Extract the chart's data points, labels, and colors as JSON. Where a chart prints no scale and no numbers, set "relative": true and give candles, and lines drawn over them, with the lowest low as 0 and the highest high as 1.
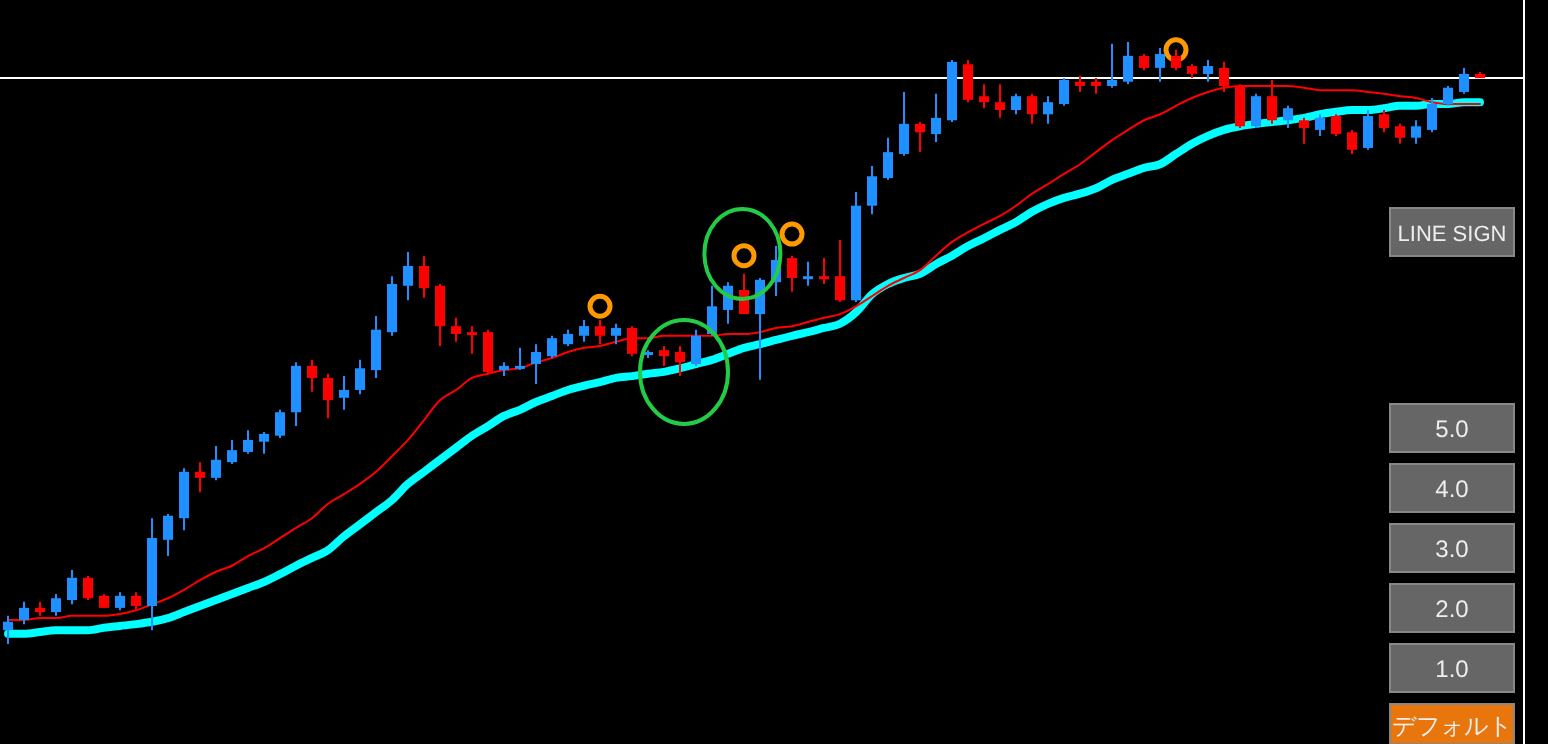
{
  "chart_data": {
    "type": "candlestick",
    "relative": true,
    "categories": [
      null,
      null,
      null,
      null,
      null,
      null,
      null,
      null,
      null,
      null,
      null,
      null,
      null,
      null,
      null,
      null,
      null,
      null,
      null,
      null,
      null,
      null,
      null,
      null,
      null,
      null,
      null,
      null,
      null,
      null,
      null,
      null,
      null,
      null,
      null,
      null,
      null,
      null,
      null,
      null,
      null,
      null,
      null,
      null,
      null,
      null,
      null,
      null,
      null,
      null,
      null,
      null,
      null,
      null,
      null,
      null,
      null,
      null,
      null,
      null,
      null,
      null,
      null,
      null,
      null,
      null,
      null,
      null,
      null,
      null,
      null,
      null,
      null,
      null,
      null,
      null,
      null,
      null,
      null,
      null,
      null,
      null,
      null,
      null,
      null,
      null,
      null,
      null,
      null,
      null,
      null,
      null,
      null
    ],
    "ohlc": [
      [
        0.023,
        0.047,
        0,
        0.037
      ],
      [
        0.04,
        0.07,
        0.033,
        0.06
      ],
      [
        0.06,
        0.07,
        0.047,
        0.053
      ],
      [
        0.053,
        0.083,
        0.047,
        0.076
      ],
      [
        0.073,
        0.123,
        0.066,
        0.11
      ],
      [
        0.11,
        0.113,
        0.073,
        0.076
      ],
      [
        0.08,
        0.083,
        0.06,
        0.06
      ],
      [
        0.06,
        0.086,
        0.056,
        0.08
      ],
      [
        0.08,
        0.086,
        0.056,
        0.063
      ],
      [
        0.063,
        0.209,
        0.023,
        0.176
      ],
      [
        0.173,
        0.216,
        0.146,
        0.213
      ],
      [
        0.209,
        0.292,
        0.189,
        0.286
      ],
      [
        0.286,
        0.302,
        0.252,
        0.276
      ],
      [
        0.276,
        0.329,
        0.272,
        0.306
      ],
      [
        0.302,
        0.339,
        0.299,
        0.322
      ],
      [
        0.319,
        0.355,
        0.316,
        0.339
      ],
      [
        0.336,
        0.352,
        0.316,
        0.349
      ],
      [
        0.346,
        0.389,
        0.342,
        0.385
      ],
      [
        0.385,
        0.468,
        0.362,
        0.462
      ],
      [
        0.462,
        0.472,
        0.419,
        0.442
      ],
      [
        0.442,
        0.449,
        0.375,
        0.405
      ],
      [
        0.409,
        0.445,
        0.389,
        0.422
      ],
      [
        0.422,
        0.472,
        0.415,
        0.458
      ],
      [
        0.455,
        0.545,
        0.442,
        0.522
      ],
      [
        0.518,
        0.611,
        0.512,
        0.598
      ],
      [
        0.595,
        0.651,
        0.571,
        0.628
      ],
      [
        0.628,
        0.645,
        0.575,
        0.591
      ],
      [
        0.595,
        0.598,
        0.495,
        0.528
      ],
      [
        0.528,
        0.542,
        0.502,
        0.515
      ],
      [
        0.518,
        0.528,
        0.482,
        0.515
      ],
      [
        0.518,
        0.522,
        0.449,
        0.452
      ],
      [
        0.455,
        0.468,
        0.445,
        0.462
      ],
      [
        0.458,
        0.492,
        0.455,
        0.462
      ],
      [
        0.465,
        0.498,
        0.432,
        0.485
      ],
      [
        0.478,
        0.512,
        0.475,
        0.508
      ],
      [
        0.498,
        0.522,
        0.495,
        0.515
      ],
      [
        0.512,
        0.538,
        0.502,
        0.528
      ],
      [
        0.528,
        0.538,
        0.498,
        0.512
      ],
      [
        0.512,
        0.532,
        0.498,
        0.525
      ],
      [
        0.525,
        0.528,
        0.478,
        0.482
      ],
      [
        0.482,
        0.488,
        0.475,
        0.485
      ],
      [
        0.488,
        0.495,
        0.462,
        0.478
      ],
      [
        0.485,
        0.495,
        0.445,
        0.468
      ],
      [
        0.465,
        0.522,
        0.462,
        0.512
      ],
      [
        0.515,
        0.595,
        0.512,
        0.561
      ],
      [
        0.555,
        0.601,
        0.532,
        0.595
      ],
      [
        0.588,
        0.615,
        0.548,
        0.548
      ],
      [
        0.548,
        0.608,
        0.439,
        0.605
      ],
      [
        0.601,
        0.661,
        0.578,
        0.638
      ],
      [
        0.641,
        0.645,
        0.585,
        0.608
      ],
      [
        0.608,
        0.635,
        0.595,
        0.611
      ],
      [
        0.611,
        0.641,
        0.598,
        0.608
      ],
      [
        0.611,
        0.671,
        0.568,
        0.571
      ],
      [
        0.571,
        0.751,
        0.568,
        0.728
      ],
      [
        0.728,
        0.794,
        0.714,
        0.777
      ],
      [
        0.774,
        0.841,
        0.771,
        0.817
      ],
      [
        0.814,
        0.917,
        0.811,
        0.864
      ],
      [
        0.864,
        0.867,
        0.817,
        0.85
      ],
      [
        0.847,
        0.914,
        0.834,
        0.874
      ],
      [
        0.87,
        0.97,
        0.867,
        0.967
      ],
      [
        0.963,
        0.97,
        0.9,
        0.904
      ],
      [
        0.91,
        0.93,
        0.89,
        0.9
      ],
      [
        0.9,
        0.93,
        0.874,
        0.887
      ],
      [
        0.887,
        0.914,
        0.88,
        0.91
      ],
      [
        0.91,
        0.914,
        0.864,
        0.88
      ],
      [
        0.88,
        0.91,
        0.864,
        0.9
      ],
      [
        0.897,
        0.94,
        0.894,
        0.937
      ],
      [
        0.934,
        0.944,
        0.917,
        0.927
      ],
      [
        0.934,
        0.94,
        0.914,
        0.927
      ],
      [
        0.927,
        0.997,
        0.924,
        0.937
      ],
      [
        0.934,
        1,
        0.93,
        0.977
      ],
      [
        0.977,
        0.98,
        0.953,
        0.957
      ],
      [
        0.957,
        0.99,
        0.934,
        0.98
      ],
      [
        0.977,
        0.987,
        0.953,
        0.957
      ],
      [
        0.96,
        0.963,
        0.94,
        0.947
      ],
      [
        0.947,
        0.97,
        0.934,
        0.96
      ],
      [
        0.957,
        0.967,
        0.917,
        0.927
      ],
      [
        0.927,
        0.93,
        0.857,
        0.86
      ],
      [
        0.86,
        0.914,
        0.857,
        0.91
      ],
      [
        0.91,
        0.937,
        0.864,
        0.87
      ],
      [
        0.87,
        0.894,
        0.857,
        0.89
      ],
      [
        0.87,
        0.874,
        0.831,
        0.857
      ],
      [
        0.854,
        0.88,
        0.844,
        0.874
      ],
      [
        0.877,
        0.88,
        0.844,
        0.847
      ],
      [
        0.85,
        0.854,
        0.814,
        0.821
      ],
      [
        0.824,
        0.887,
        0.821,
        0.877
      ],
      [
        0.88,
        0.887,
        0.85,
        0.857
      ],
      [
        0.86,
        0.864,
        0.831,
        0.841
      ],
      [
        0.841,
        0.87,
        0.831,
        0.86
      ],
      [
        0.854,
        0.907,
        0.85,
        0.897
      ],
      [
        0.897,
        0.927,
        0.894,
        0.924
      ],
      [
        0.917,
        0.957,
        0.914,
        0.947
      ],
      [
        0.947,
        0.95,
        0.94,
        0.94
      ]
    ],
    "series": [
      {
        "type": "line",
        "color": "#ff0000",
        "values": [
          0.04,
          0.04,
          0.043,
          0.043,
          0.047,
          0.047,
          0.047,
          0.05,
          0.056,
          0.066,
          0.076,
          0.09,
          0.106,
          0.12,
          0.13,
          0.146,
          0.159,
          0.176,
          0.193,
          0.209,
          0.233,
          0.249,
          0.266,
          0.286,
          0.312,
          0.339,
          0.372,
          0.405,
          0.422,
          0.442,
          0.449,
          0.455,
          0.458,
          0.468,
          0.475,
          0.485,
          0.492,
          0.495,
          0.502,
          0.508,
          0.508,
          0.512,
          0.512,
          0.512,
          0.512,
          0.515,
          0.515,
          0.518,
          0.525,
          0.528,
          0.535,
          0.542,
          0.548,
          0.561,
          0.578,
          0.595,
          0.608,
          0.621,
          0.645,
          0.668,
          0.684,
          0.698,
          0.711,
          0.728,
          0.748,
          0.764,
          0.781,
          0.797,
          0.817,
          0.837,
          0.854,
          0.87,
          0.88,
          0.894,
          0.907,
          0.917,
          0.924,
          0.927,
          0.927,
          0.927,
          0.927,
          0.924,
          0.92,
          0.92,
          0.92,
          0.917,
          0.914,
          0.91,
          0.907,
          0.9,
          0.897,
          0.897,
          0.897
        ]
      },
      {
        "type": "line",
        "color": "#00ffff",
        "values": [
          0.017,
          0.017,
          0.02,
          0.023,
          0.023,
          0.023,
          0.027,
          0.03,
          0.033,
          0.037,
          0.043,
          0.053,
          0.063,
          0.073,
          0.083,
          0.093,
          0.103,
          0.116,
          0.13,
          0.143,
          0.156,
          0.179,
          0.199,
          0.219,
          0.239,
          0.266,
          0.286,
          0.306,
          0.326,
          0.346,
          0.362,
          0.379,
          0.389,
          0.402,
          0.412,
          0.422,
          0.429,
          0.435,
          0.442,
          0.445,
          0.449,
          0.452,
          0.458,
          0.465,
          0.472,
          0.482,
          0.492,
          0.498,
          0.505,
          0.512,
          0.518,
          0.525,
          0.532,
          0.551,
          0.581,
          0.598,
          0.608,
          0.615,
          0.631,
          0.645,
          0.661,
          0.674,
          0.688,
          0.701,
          0.718,
          0.731,
          0.741,
          0.748,
          0.757,
          0.771,
          0.781,
          0.791,
          0.797,
          0.814,
          0.831,
          0.844,
          0.854,
          0.86,
          0.864,
          0.867,
          0.87,
          0.874,
          0.88,
          0.884,
          0.887,
          0.887,
          0.89,
          0.894,
          0.894,
          0.897,
          0.897,
          0.9,
          0.9
        ]
      },
      {
        "type": "scatter",
        "color": "#ff9900",
        "marker": "circle",
        "values": [
          null,
          null,
          null,
          null,
          null,
          null,
          null,
          null,
          null,
          null,
          null,
          null,
          null,
          null,
          null,
          null,
          null,
          null,
          null,
          null,
          null,
          null,
          null,
          null,
          null,
          null,
          null,
          null,
          null,
          null,
          null,
          null,
          null,
          null,
          null,
          null,
          null,
          0.561,
          null,
          null,
          null,
          null,
          null,
          null,
          null,
          null,
          0.645,
          null,
          null,
          0.681,
          null,
          null,
          null,
          null,
          null,
          null,
          null,
          null,
          null,
          null,
          null,
          null,
          null,
          null,
          null,
          null,
          null,
          null,
          null,
          null,
          null,
          null,
          null,
          0.987,
          null,
          null,
          null,
          null,
          null,
          null,
          null,
          null,
          null,
          null,
          null,
          null,
          null,
          null,
          null,
          null,
          null,
          null,
          null
        ]
      }
    ],
    "ref_lines": [
      {
        "axis": "y",
        "value": 0.94,
        "color": "#ffffff"
      }
    ],
    "annotations": [
      "LINE SIGN",
      "5.0",
      "4.0",
      "3.0",
      "2.0",
      "1.0",
      "デフォルト"
    ]
  }
}
